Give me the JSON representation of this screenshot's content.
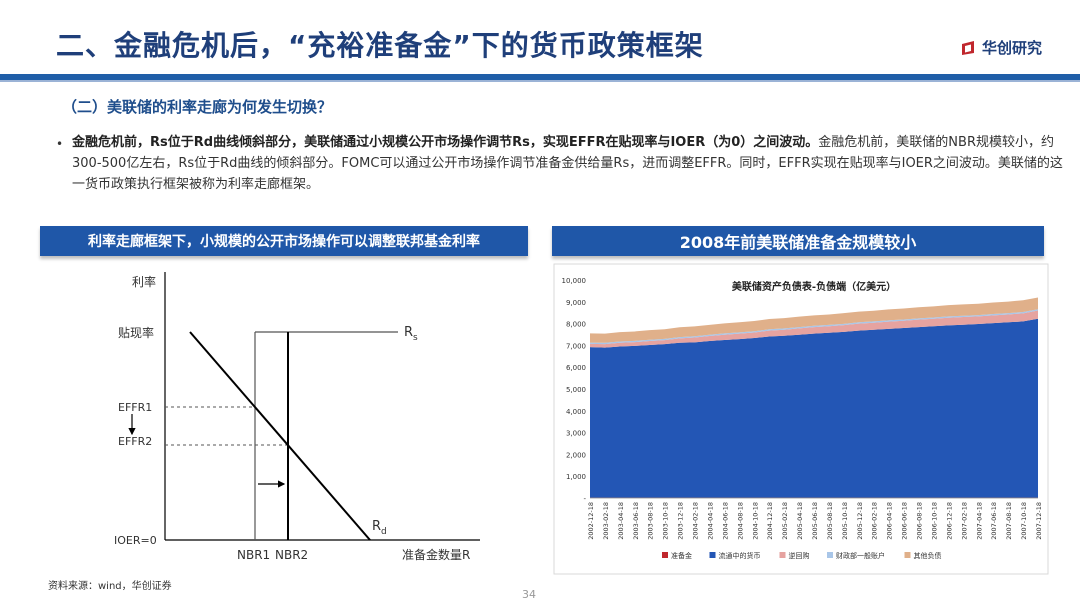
{
  "header": {
    "title": "二、金融危机后，“充裕准备金”下的货币政策框架",
    "logo_text": "华创研究"
  },
  "section": {
    "subtitle": "（二）美联储的利率走廊为何发生切换？",
    "bullet_bold": "金融危机前，Rs位于Rd曲线倾斜部分，美联储通过小规模公开市场操作调节Rs，实现EFFR在贴现率与IOER（为0）之间波动。",
    "bullet_rest": "金融危机前，美联储的NBR规模较小，约300-500亿左右，Rs位于Rd曲线的倾斜部分。FOMC可以通过公开市场操作调节准备金供给量Rs，进而调整EFFR。同时，EFFR实现在贴现率与IOER之间波动。美联储的这一货币政策执行框架被称为利率走廊框架。"
  },
  "left_panel": {
    "banner": "利率走廊框架下，小规模的公开市场操作可以调整联邦基金利率",
    "diagram": {
      "y_axis_label": "利率",
      "x_axis_label": "准备金数量R",
      "y_labels": {
        "discount": "贴现率",
        "effr1": "EFFR1",
        "effr2": "EFFR2",
        "ioer": "IOER=0"
      },
      "x_labels": {
        "nbr1": "NBR1",
        "nbr2": "NBR2"
      },
      "curve_rs": "R",
      "curve_rs_sub": "s",
      "curve_rd": "R",
      "curve_rd_sub": "d"
    }
  },
  "right_panel": {
    "banner": "2008年前美联储准备金规模较小"
  },
  "chart_data": {
    "type": "area",
    "title": "美联储资产负债表-负债端（亿美元）",
    "x_tick_labels": [
      "2002-12-18",
      "2003-02-18",
      "2003-04-18",
      "2003-06-18",
      "2003-08-18",
      "2003-10-18",
      "2003-12-18",
      "2004-02-18",
      "2004-04-18",
      "2004-06-18",
      "2004-08-18",
      "2004-10-18",
      "2004-12-18",
      "2005-02-18",
      "2005-04-18",
      "2005-06-18",
      "2005-08-18",
      "2005-10-18",
      "2005-12-18",
      "2006-02-18",
      "2006-04-18",
      "2006-06-18",
      "2006-08-18",
      "2006-10-18",
      "2006-12-18",
      "2007-02-18",
      "2007-04-18",
      "2007-06-18",
      "2007-08-18",
      "2007-10-18",
      "2007-12-18"
    ],
    "y_tick_labels": [
      "-",
      "1,000",
      "2,000",
      "3,000",
      "4,000",
      "5,000",
      "6,000",
      "7,000",
      "8,000",
      "9,000",
      "10,000"
    ],
    "ylim": [
      0,
      10000
    ],
    "series": [
      {
        "name": "准备金",
        "color": "#c0272d",
        "values": [
          20,
          20,
          20,
          20,
          20,
          20,
          20,
          20,
          20,
          20,
          20,
          20,
          20,
          20,
          20,
          20,
          20,
          20,
          20,
          20,
          20,
          20,
          20,
          20,
          20,
          20,
          20,
          20,
          20,
          20,
          20
        ]
      },
      {
        "name": "流通中的货币",
        "color": "#2356b5",
        "values": [
          6900,
          6880,
          6930,
          6960,
          7000,
          7040,
          7100,
          7120,
          7180,
          7230,
          7270,
          7320,
          7390,
          7420,
          7470,
          7520,
          7560,
          7600,
          7660,
          7700,
          7740,
          7780,
          7820,
          7860,
          7900,
          7930,
          7960,
          8000,
          8040,
          8080,
          8200
        ]
      },
      {
        "name": "逆回购",
        "color": "#e6a3a0",
        "values": [
          150,
          160,
          170,
          170,
          180,
          180,
          200,
          220,
          230,
          240,
          250,
          250,
          270,
          280,
          290,
          300,
          300,
          310,
          320,
          320,
          330,
          330,
          340,
          340,
          350,
          350,
          350,
          360,
          360,
          370,
          380
        ]
      },
      {
        "name": "财政部一般账户",
        "color": "#a9c6e8",
        "values": [
          60,
          60,
          60,
          60,
          60,
          60,
          60,
          60,
          60,
          60,
          60,
          60,
          60,
          60,
          60,
          60,
          60,
          60,
          60,
          60,
          60,
          60,
          60,
          60,
          60,
          60,
          60,
          60,
          60,
          60,
          60
        ]
      },
      {
        "name": "其他负债",
        "color": "#e0b08a",
        "values": [
          420,
          420,
          430,
          430,
          440,
          440,
          450,
          450,
          450,
          460,
          460,
          470,
          470,
          470,
          480,
          480,
          480,
          490,
          490,
          490,
          500,
          500,
          510,
          510,
          520,
          520,
          520,
          530,
          530,
          540,
          540
        ]
      }
    ]
  },
  "footer": {
    "source": "资料来源：wind，华创证券",
    "page": "34"
  }
}
